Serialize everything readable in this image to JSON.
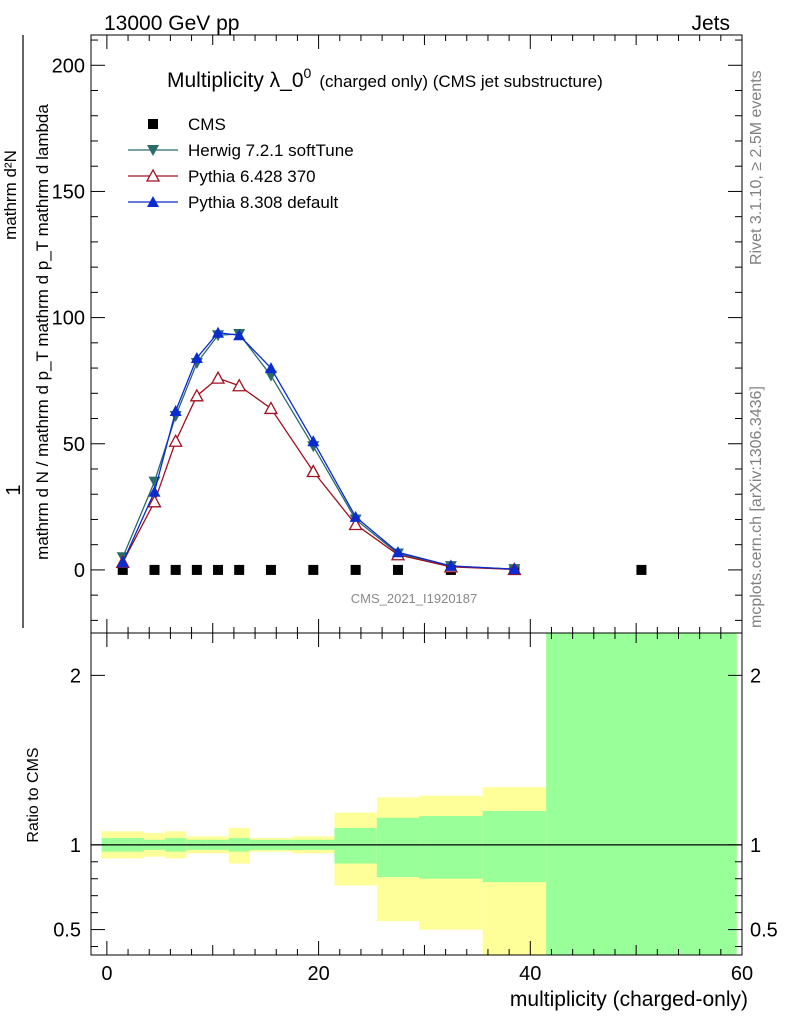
{
  "header": {
    "energy": "13000 GeV pp",
    "process": "Jets"
  },
  "side_text": {
    "rivet": "Rivet 3.1.10, ≥ 2.5M events",
    "source": "mcplots.cern.ch [arXiv:1306.3436]"
  },
  "colors": {
    "cms": "#000000",
    "herwig": "#2b6b6b",
    "pythia6": "#a01020",
    "pythia8": "#0a2bd0",
    "band_inner": "#99ff99",
    "band_outer": "#ffff99"
  },
  "chart_data": [
    {
      "type": "line",
      "title": "Multiplicity λ_0",
      "title_sup": "0",
      "title_suffix": "(charged only) (CMS jet substructure)",
      "watermark": "CMS_2021_I1920187",
      "ylabel_top": "1",
      "ylabel_bottom": "mathrm d N / mathrm d p_T mathrm d p_T mathrm d lambda",
      "ylabel_bottom_num": "mathrm d²N",
      "xlim": [
        -1.5,
        60
      ],
      "ylim": [
        -25,
        212
      ],
      "yticks": [
        0,
        50,
        100,
        150,
        200
      ],
      "legend_position": "top-left",
      "series": [
        {
          "name": "CMS",
          "marker": "square",
          "x": [
            1.5,
            4.5,
            6.5,
            8.5,
            10.5,
            12.5,
            15.5,
            19.5,
            23.5,
            27.5,
            32.5,
            38.5,
            50.5
          ],
          "y": [
            0,
            0,
            0,
            0,
            0,
            0,
            0,
            0,
            0,
            0,
            0,
            0,
            0
          ]
        },
        {
          "name": "Herwig 7.2.1 softTune",
          "marker": "triangle-down",
          "x": [
            1.5,
            4.5,
            6.5,
            8.5,
            10.5,
            12.5,
            15.5,
            19.5,
            23.5,
            27.5,
            32.5,
            38.5
          ],
          "y": [
            5,
            35,
            61,
            82,
            93,
            93.5,
            77,
            49,
            20,
            6.5,
            1.5,
            0.3
          ]
        },
        {
          "name": "Pythia 6.428 370",
          "marker": "triangle-up-open",
          "x": [
            1.5,
            4.5,
            6.5,
            8.5,
            10.5,
            12.5,
            15.5,
            19.5,
            23.5,
            27.5,
            32.5,
            38.5
          ],
          "y": [
            3,
            27,
            51,
            69,
            76,
            73,
            64,
            39,
            18,
            6,
            1.2,
            0.2
          ]
        },
        {
          "name": "Pythia 8.308 default",
          "marker": "triangle-up",
          "x": [
            1.5,
            4.5,
            6.5,
            8.5,
            10.5,
            12.5,
            15.5,
            19.5,
            23.5,
            27.5,
            32.5,
            38.5
          ],
          "y": [
            3,
            31,
            63,
            84,
            94,
            93,
            80,
            51,
            21,
            7,
            1.6,
            0.3
          ]
        }
      ]
    },
    {
      "type": "area",
      "ylabel": "Ratio to CMS",
      "xlabel": "multiplicity (charged-only)",
      "xlim": [
        -1.5,
        60
      ],
      "ylim": [
        0.35,
        2.25
      ],
      "yticks": [
        0.5,
        1,
        2
      ],
      "ytick_labels": [
        "0.5",
        "1",
        "2"
      ],
      "xticks": [
        0,
        20,
        40,
        60
      ],
      "xtick_labels": [
        "0",
        "20",
        "40",
        "60"
      ],
      "reference": 1,
      "bins": [
        {
          "lo": -0.5,
          "hi": 3.5,
          "inner_lo": 0.96,
          "inner_hi": 1.04,
          "outer_lo": 0.92,
          "outer_hi": 1.08
        },
        {
          "lo": 3.5,
          "hi": 5.5,
          "inner_lo": 0.97,
          "inner_hi": 1.03,
          "outer_lo": 0.93,
          "outer_hi": 1.07
        },
        {
          "lo": 5.5,
          "hi": 7.5,
          "inner_lo": 0.96,
          "inner_hi": 1.04,
          "outer_lo": 0.92,
          "outer_hi": 1.08
        },
        {
          "lo": 7.5,
          "hi": 9.5,
          "inner_lo": 0.97,
          "inner_hi": 1.03,
          "outer_lo": 0.95,
          "outer_hi": 1.05
        },
        {
          "lo": 9.5,
          "hi": 11.5,
          "inner_lo": 0.97,
          "inner_hi": 1.03,
          "outer_lo": 0.95,
          "outer_hi": 1.05
        },
        {
          "lo": 11.5,
          "hi": 13.5,
          "inner_lo": 0.96,
          "inner_hi": 1.04,
          "outer_lo": 0.89,
          "outer_hi": 1.1
        },
        {
          "lo": 13.5,
          "hi": 17.5,
          "inner_lo": 0.97,
          "inner_hi": 1.03,
          "outer_lo": 0.96,
          "outer_hi": 1.04
        },
        {
          "lo": 17.5,
          "hi": 21.5,
          "inner_lo": 0.97,
          "inner_hi": 1.03,
          "outer_lo": 0.95,
          "outer_hi": 1.05
        },
        {
          "lo": 21.5,
          "hi": 25.5,
          "inner_lo": 0.89,
          "inner_hi": 1.1,
          "outer_lo": 0.76,
          "outer_hi": 1.19
        },
        {
          "lo": 25.5,
          "hi": 29.5,
          "inner_lo": 0.81,
          "inner_hi": 1.16,
          "outer_lo": 0.55,
          "outer_hi": 1.28
        },
        {
          "lo": 29.5,
          "hi": 35.5,
          "inner_lo": 0.8,
          "inner_hi": 1.17,
          "outer_lo": 0.5,
          "outer_hi": 1.29
        },
        {
          "lo": 35.5,
          "hi": 41.5,
          "inner_lo": 0.78,
          "inner_hi": 1.2,
          "outer_lo": 0.35,
          "outer_hi": 1.34
        },
        {
          "lo": 41.5,
          "hi": 59.5,
          "inner_lo": 0.35,
          "inner_hi": 2.25,
          "outer_lo": 0.35,
          "outer_hi": 2.25
        }
      ]
    }
  ]
}
